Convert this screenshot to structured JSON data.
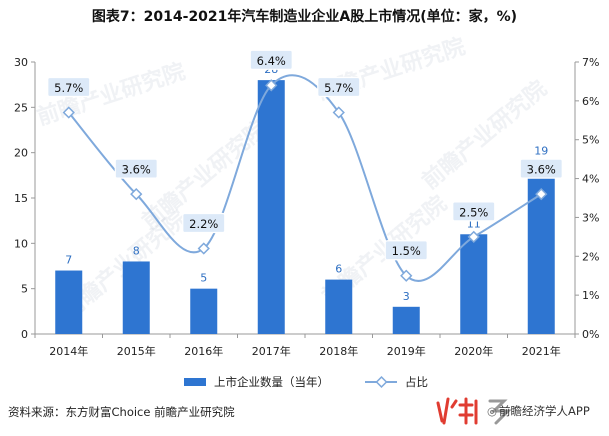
{
  "title": "图表7：2014-2021年汽车制造业企业A股上市情况(单位：家，%)",
  "source": "资料来源：东方财富Choice 前瞻产业研究院",
  "brand": {
    "icon": "chart-bubble-icon",
    "text": "前瞻经济学人APP"
  },
  "watermark": "前瞻产业研究院",
  "colors": {
    "bar": "#2E75D1",
    "line": "#7FA9DC",
    "label_fill": "#DCE9F8",
    "axis": "#999999",
    "logo_red": "#E03C31"
  },
  "chart_data": {
    "type": "bar",
    "categories": [
      "2014年",
      "2015年",
      "2016年",
      "2017年",
      "2018年",
      "2019年",
      "2020年",
      "2021年"
    ],
    "series": [
      {
        "name": "上市企业数量（当年）",
        "type": "bar",
        "axis": "left",
        "values": [
          7,
          8,
          5,
          28,
          6,
          3,
          11,
          19
        ],
        "labels": [
          "7",
          "8",
          "5",
          "28",
          "6",
          "3",
          "11",
          "19"
        ]
      },
      {
        "name": "占比",
        "type": "line",
        "axis": "right",
        "values": [
          5.7,
          3.6,
          2.2,
          6.4,
          5.7,
          1.5,
          2.5,
          3.6
        ],
        "labels": [
          "5.7%",
          "3.6%",
          "2.2%",
          "6.4%",
          "5.7%",
          "1.5%",
          "2.5%",
          "3.6%"
        ]
      }
    ],
    "y_left": {
      "ylim": [
        0,
        30
      ],
      "ticks": [
        "0",
        "5",
        "10",
        "15",
        "20",
        "25",
        "30"
      ]
    },
    "y_right": {
      "ylim": [
        0,
        7
      ],
      "ticks": [
        "0%",
        "1%",
        "2%",
        "3%",
        "4%",
        "5%",
        "6%",
        "7%"
      ]
    },
    "grid": false,
    "legend_position": "bottom-center"
  }
}
